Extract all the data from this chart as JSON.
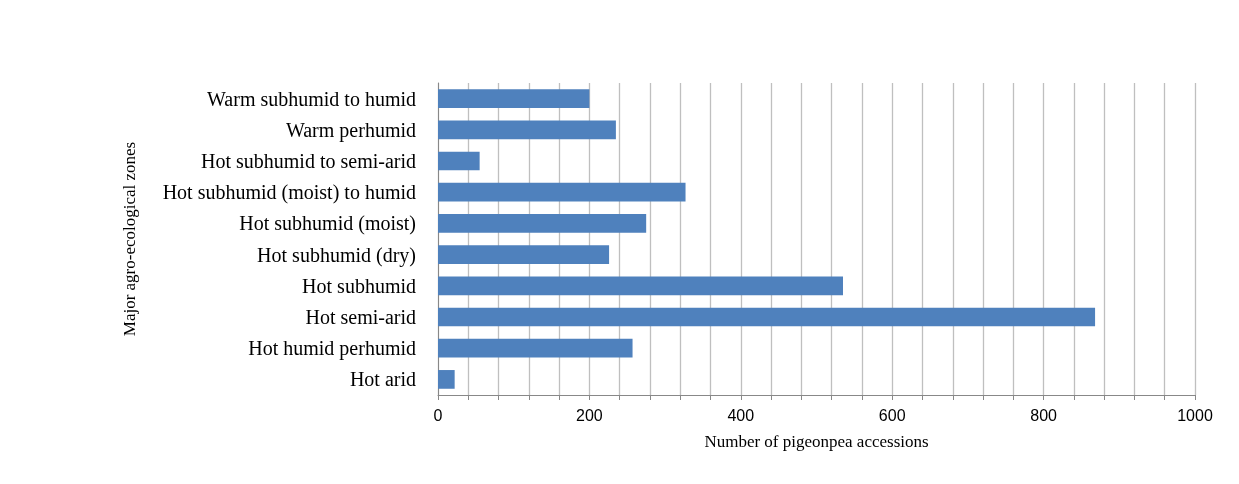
{
  "chart_data": {
    "type": "bar",
    "orientation": "horizontal",
    "xlabel": "Number of pigeonpea accessions",
    "ylabel": "Major agro-ecological zones",
    "categories": [
      "Warm subhumid to humid",
      "Warm perhumid",
      "Hot subhumid to semi-arid",
      "Hot subhumid (moist) to humid",
      "Hot subhumid (moist)",
      "Hot subhumid (dry)",
      "Hot subhumid",
      "Hot semi-arid",
      "Hot humid perhumid",
      "Hot arid"
    ],
    "values": [
      200,
      235,
      55,
      327,
      275,
      226,
      535,
      868,
      257,
      22
    ],
    "color": "#4f81bd",
    "xlim": [
      0,
      1000
    ],
    "xticks": [
      0,
      {
        "value": 40,
        "label": null
      },
      {
        "value": 80,
        "label": null
      },
      {
        "value": 120,
        "label": null
      },
      {
        "value": 160,
        "label": null
      },
      200,
      {
        "value": 240,
        "label": null
      },
      {
        "value": 280,
        "label": null
      },
      {
        "value": 320,
        "label": null
      },
      {
        "value": 360,
        "label": null
      },
      400,
      {
        "value": 440,
        "label": null
      },
      {
        "value": 480,
        "label": null
      },
      {
        "value": 520,
        "label": null
      },
      {
        "value": 560,
        "label": null
      },
      600,
      {
        "value": 640,
        "label": null
      },
      {
        "value": 680,
        "label": null
      },
      {
        "value": 720,
        "label": null
      },
      {
        "value": 760,
        "label": null
      },
      800,
      {
        "value": 840,
        "label": null
      },
      {
        "value": 880,
        "label": null
      },
      {
        "value": 920,
        "label": null
      },
      {
        "value": 960,
        "label": null
      },
      1000
    ],
    "grid": "x"
  }
}
